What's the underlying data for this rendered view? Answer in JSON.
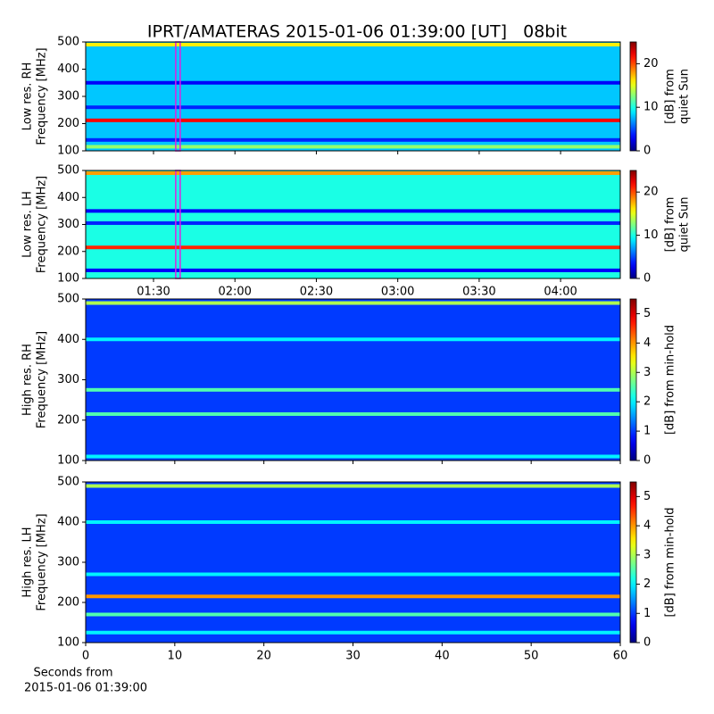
{
  "title": "IPRT/AMATERAS 2015-01-06 01:39:00 [UT]   08bit",
  "chart_data": [
    {
      "type": "spectrogram",
      "ylabel": [
        "Low res. RH",
        "Frequency [MHz]"
      ],
      "ylim": [
        100,
        500
      ],
      "yticks": [
        100,
        200,
        300,
        400,
        500
      ],
      "xlim": [
        65,
        262
      ],
      "xticks": [
        90,
        120,
        150,
        180,
        210,
        240
      ],
      "show_xtick_labels": false,
      "marker": 99,
      "background": 8,
      "bands": [
        {
          "freq": 490,
          "level": 16
        },
        {
          "freq": 212,
          "level": 22
        },
        {
          "freq": 350,
          "level": 3
        },
        {
          "freq": 260,
          "level": 4
        },
        {
          "freq": 115,
          "level": 13
        },
        {
          "freq": 140,
          "level": 4
        }
      ],
      "clabel": [
        "[dB] from",
        "quiet Sun"
      ],
      "clim": [
        0,
        25
      ],
      "cticks": [
        0,
        10,
        20
      ]
    },
    {
      "type": "spectrogram",
      "ylabel": [
        "Low res. LH",
        "Frequency [MHz]"
      ],
      "ylim": [
        100,
        500
      ],
      "yticks": [
        100,
        200,
        300,
        400,
        500
      ],
      "xlim": [
        65,
        262
      ],
      "xticks": [
        {
          "value": 90,
          "label": "01:30"
        },
        {
          "value": 120,
          "label": "02:00"
        },
        {
          "value": 150,
          "label": "02:30"
        },
        {
          "value": 180,
          "label": "03:00"
        },
        {
          "value": 210,
          "label": "03:30"
        },
        {
          "value": 240,
          "label": "04:00"
        }
      ],
      "show_xtick_labels": true,
      "marker": 99,
      "background": 10,
      "bands": [
        {
          "freq": 490,
          "level": 18
        },
        {
          "freq": 215,
          "level": 21
        },
        {
          "freq": 350,
          "level": 3
        },
        {
          "freq": 305,
          "level": 4
        },
        {
          "freq": 130,
          "level": 3
        }
      ],
      "clabel": [
        "[dB] from",
        "quiet Sun"
      ],
      "clim": [
        0,
        25
      ],
      "cticks": [
        0,
        10,
        20
      ]
    },
    {
      "type": "spectrogram",
      "ylabel": [
        "High res. RH",
        "Frequency [MHz]"
      ],
      "ylim": [
        100,
        500
      ],
      "yticks": [
        100,
        200,
        300,
        400,
        500
      ],
      "xlim": [
        0,
        60
      ],
      "xticks": [
        0,
        10,
        20,
        30,
        40,
        50,
        60
      ],
      "show_xtick_labels": false,
      "background": 1,
      "bands": [
        {
          "freq": 490,
          "level": 3
        },
        {
          "freq": 400,
          "level": 2
        },
        {
          "freq": 275,
          "level": 2.5
        },
        {
          "freq": 215,
          "level": 2.5
        },
        {
          "freq": 110,
          "level": 2
        }
      ],
      "clabel": [
        "[dB] from min-hold"
      ],
      "clim": [
        0,
        5.5
      ],
      "cticks": [
        0,
        1,
        2,
        3,
        4,
        5
      ]
    },
    {
      "type": "spectrogram",
      "ylabel": [
        "High res. LH",
        "Frequency [MHz]"
      ],
      "ylim": [
        100,
        500
      ],
      "yticks": [
        100,
        200,
        300,
        400,
        500
      ],
      "xlim": [
        0,
        60
      ],
      "xticks": [
        0,
        10,
        20,
        30,
        40,
        50,
        60
      ],
      "show_xtick_labels": true,
      "xlabel": [
        "Seconds from",
        "2015-01-06 01:39:00"
      ],
      "background": 1,
      "bands": [
        {
          "freq": 490,
          "level": 3
        },
        {
          "freq": 400,
          "level": 2
        },
        {
          "freq": 270,
          "level": 2
        },
        {
          "freq": 215,
          "level": 4
        },
        {
          "freq": 170,
          "level": 2.5
        },
        {
          "freq": 125,
          "level": 2
        }
      ],
      "clabel": [
        "[dB] from min-hold"
      ],
      "clim": [
        0,
        5.5
      ],
      "cticks": [
        0,
        1,
        2,
        3,
        4,
        5
      ]
    }
  ]
}
